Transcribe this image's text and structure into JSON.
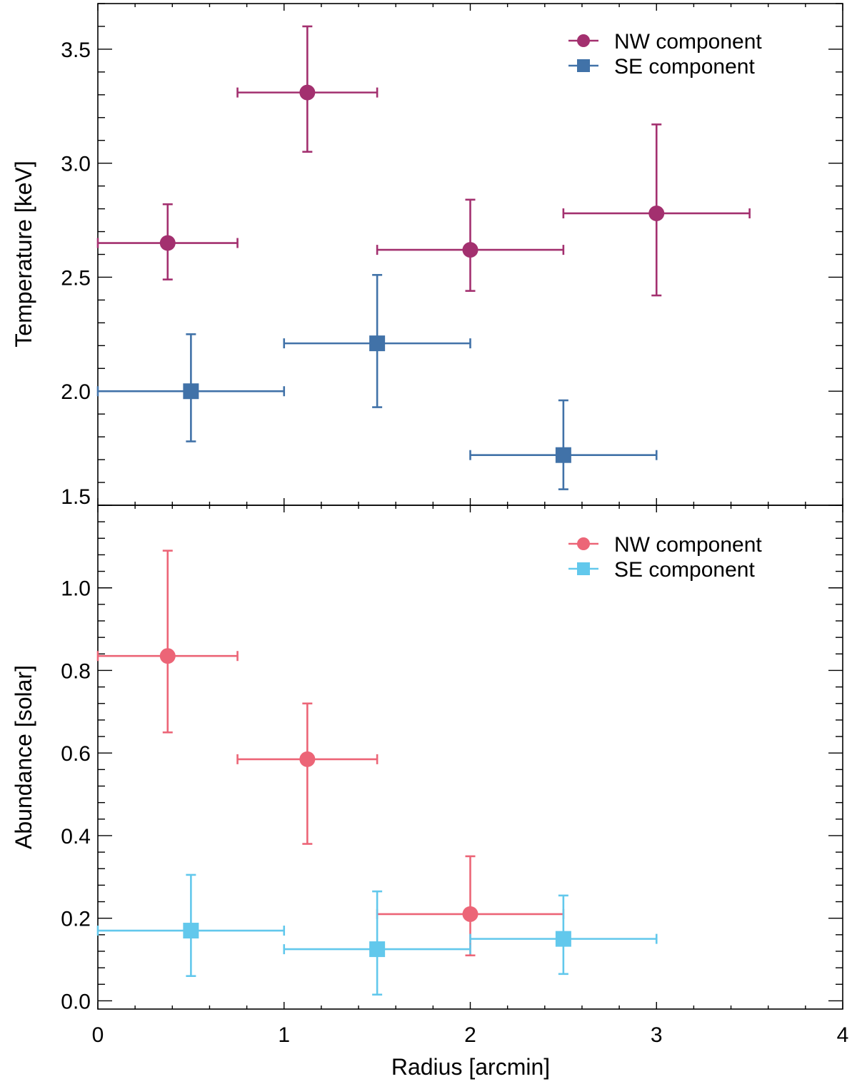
{
  "chart_data": [
    {
      "type": "scatter",
      "panel": "top",
      "title": "",
      "xlabel": "",
      "ylabel": "Temperature [keV]",
      "xlim": [
        0,
        4
      ],
      "ylim": [
        1.5,
        3.7
      ],
      "yticks": [
        1.5,
        2.0,
        2.5,
        3.0,
        3.5
      ],
      "ytick_labels": [
        "1.5",
        "2.0",
        "2.5",
        "3.0",
        "3.5"
      ],
      "legend_position": "top-right",
      "series": [
        {
          "name": "NW component",
          "marker": "circle",
          "color": "#a3306f",
          "points": [
            {
              "x": 0.375,
              "xerr": 0.375,
              "y": 2.65,
              "ylo": 2.49,
              "yhi": 2.82
            },
            {
              "x": 1.125,
              "xerr": 0.375,
              "y": 3.31,
              "ylo": 3.05,
              "yhi": 3.6
            },
            {
              "x": 2.0,
              "xerr": 0.5,
              "y": 2.62,
              "ylo": 2.44,
              "yhi": 2.84
            },
            {
              "x": 3.0,
              "xerr": 0.5,
              "y": 2.78,
              "ylo": 2.42,
              "yhi": 3.17
            }
          ]
        },
        {
          "name": "SE component",
          "marker": "square",
          "color": "#4172a8",
          "points": [
            {
              "x": 0.5,
              "xerr": 0.5,
              "y": 2.0,
              "ylo": 1.78,
              "yhi": 2.25
            },
            {
              "x": 1.5,
              "xerr": 0.5,
              "y": 2.21,
              "ylo": 1.93,
              "yhi": 2.51
            },
            {
              "x": 2.5,
              "xerr": 0.5,
              "y": 1.72,
              "ylo": 1.57,
              "yhi": 1.96
            }
          ]
        }
      ]
    },
    {
      "type": "scatter",
      "panel": "bottom",
      "title": "",
      "xlabel": "Radius [arcmin]",
      "ylabel": "Abundance [solar]",
      "xlim": [
        0,
        4
      ],
      "ylim": [
        -0.02,
        1.2
      ],
      "xticks": [
        0,
        1,
        2,
        3,
        4
      ],
      "xtick_labels": [
        "0",
        "1",
        "2",
        "3",
        "4"
      ],
      "yticks": [
        0.0,
        0.2,
        0.4,
        0.6,
        0.8,
        1.0
      ],
      "ytick_labels": [
        "0.0",
        "0.2",
        "0.4",
        "0.6",
        "0.8",
        "1.0"
      ],
      "legend_position": "top-right",
      "series": [
        {
          "name": "NW component",
          "marker": "circle",
          "color": "#ec6577",
          "points": [
            {
              "x": 0.375,
              "xerr": 0.375,
              "y": 0.835,
              "ylo": 0.65,
              "yhi": 1.09
            },
            {
              "x": 1.125,
              "xerr": 0.375,
              "y": 0.585,
              "ylo": 0.38,
              "yhi": 0.72
            },
            {
              "x": 2.0,
              "xerr": 0.5,
              "y": 0.21,
              "ylo": 0.11,
              "yhi": 0.35
            }
          ]
        },
        {
          "name": "SE component",
          "marker": "square",
          "color": "#62c8ec",
          "points": [
            {
              "x": 0.5,
              "xerr": 0.5,
              "y": 0.17,
              "ylo": 0.06,
              "yhi": 0.305
            },
            {
              "x": 1.5,
              "xerr": 0.5,
              "y": 0.125,
              "ylo": 0.015,
              "yhi": 0.265
            },
            {
              "x": 2.5,
              "xerr": 0.5,
              "y": 0.15,
              "ylo": 0.065,
              "yhi": 0.255
            }
          ]
        }
      ]
    }
  ]
}
